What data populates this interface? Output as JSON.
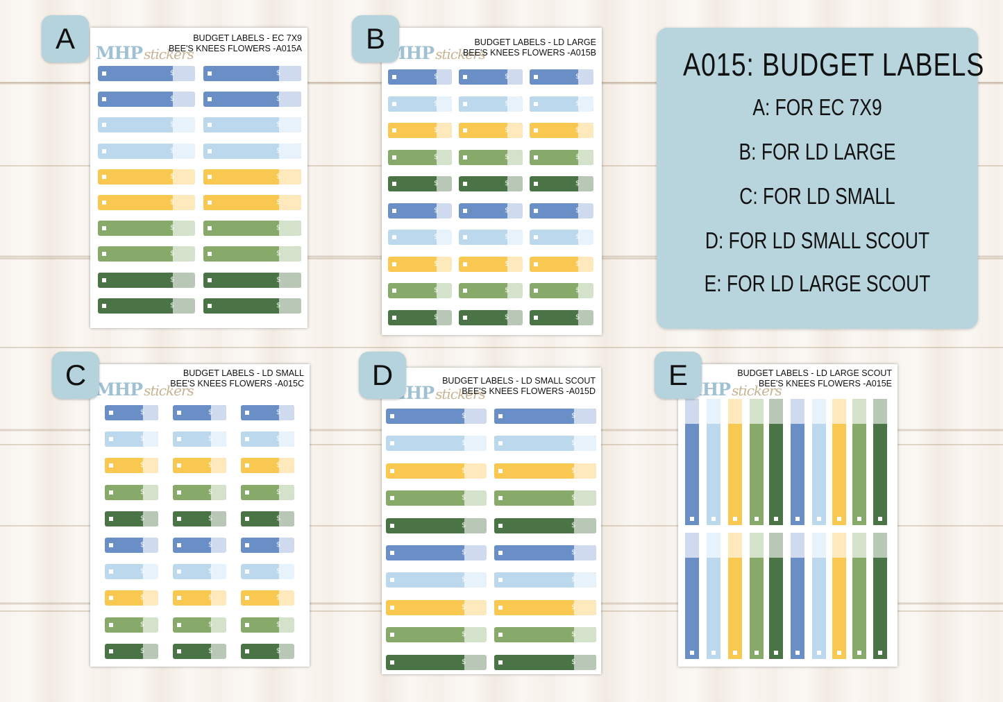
{
  "brand": {
    "name": "MHP",
    "suffix": "stickers"
  },
  "colors": {
    "blue": "#6a8fc6",
    "blue_tip": "#cfdaee",
    "light": "#bcd8ec",
    "light_tip": "#e8f2fa",
    "yellow": "#f9c851",
    "yellow_tip": "#fde9bc",
    "green": "#87a96a",
    "green_tip": "#d5e2cb",
    "dark": "#4a7445",
    "dark_tip": "#b9c8b6",
    "card": "#b8d4dd",
    "badge": "#b5d3dc"
  },
  "sheets": [
    {
      "badge": "A",
      "line1": "BUDGET LABELS - EC 7X9",
      "line2": "BEE'S KNEES FLOWERS -A015A"
    },
    {
      "badge": "B",
      "line1": "BUDGET LABELS - LD LARGE",
      "line2": "BEE'S KNEES FLOWERS -A015B"
    },
    {
      "badge": "C",
      "line1": "BUDGET LABELS - LD SMALL",
      "line2": "BEE'S KNEES FLOWERS -A015C"
    },
    {
      "badge": "D",
      "line1": "BUDGET LABELS - LD SMALL SCOUT",
      "line2": "BEE'S KNEES FLOWERS -A015D"
    },
    {
      "badge": "E",
      "line1": "BUDGET LABELS - LD LARGE SCOUT",
      "line2": "BEE'S KNEES FLOWERS -A015E"
    }
  ],
  "info": {
    "title": "A015: BUDGET LABELS",
    "lines": [
      "A: FOR EC 7X9",
      "B: FOR LD LARGE",
      "C: FOR LD SMALL",
      "D: FOR LD SMALL SCOUT",
      "E: FOR LD LARGE SCOUT"
    ]
  },
  "glyphs": {
    "dollar": "$"
  }
}
